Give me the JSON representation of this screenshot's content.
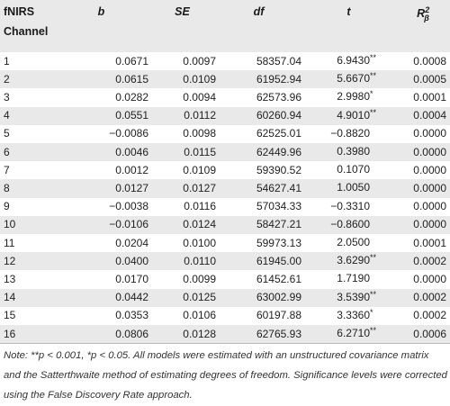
{
  "table": {
    "headers": {
      "channel_line1": "fNIRS",
      "channel_line2": "Channel",
      "b": "b",
      "se": "SE",
      "df": "df",
      "t": "t",
      "r2_base": "R",
      "r2_sub": "β",
      "r2_sup": "2"
    },
    "rows": [
      {
        "channel": "1",
        "b": "0.0671",
        "se": "0.0097",
        "df": "58357.04",
        "t": "6.9430",
        "sig": "**"
      },
      {
        "channel": "2",
        "b": "0.0615",
        "se": "0.0109",
        "df": "61952.94",
        "t": "5.6670",
        "sig": "**"
      },
      {
        "channel": "3",
        "b": "0.0282",
        "se": "0.0094",
        "df": "62573.96",
        "t": "2.9980",
        "sig": "*"
      },
      {
        "channel": "4",
        "b": "0.0551",
        "se": "0.0112",
        "df": "60260.94",
        "t": "4.9010",
        "sig": "**"
      },
      {
        "channel": "5",
        "b": "−0.0086",
        "se": "0.0098",
        "df": "62525.01",
        "t": "−0.8820",
        "sig": ""
      },
      {
        "channel": "6",
        "b": "0.0046",
        "se": "0.0115",
        "df": "62449.96",
        "t": "0.3980",
        "sig": ""
      },
      {
        "channel": "7",
        "b": "0.0012",
        "se": "0.0109",
        "df": "59390.52",
        "t": "0.1070",
        "sig": ""
      },
      {
        "channel": "8",
        "b": "0.0127",
        "se": "0.0127",
        "df": "54627.41",
        "t": "1.0050",
        "sig": ""
      },
      {
        "channel": "9",
        "b": "−0.0038",
        "se": "0.0116",
        "df": "57034.33",
        "t": "−0.3310",
        "sig": ""
      },
      {
        "channel": "10",
        "b": "−0.0106",
        "se": "0.0124",
        "df": "58427.21",
        "t": "−0.8600",
        "sig": ""
      },
      {
        "channel": "11",
        "b": "0.0204",
        "se": "0.0100",
        "df": "59973.13",
        "t": "2.0500",
        "sig": ""
      },
      {
        "channel": "12",
        "b": "0.0400",
        "se": "0.0110",
        "df": "61945.00",
        "t": "3.6290",
        "sig": "**"
      },
      {
        "channel": "13",
        "b": "0.0170",
        "se": "0.0099",
        "df": "61452.61",
        "t": "1.7190",
        "sig": ""
      },
      {
        "channel": "14",
        "b": "0.0442",
        "se": "0.0125",
        "df": "63002.99",
        "t": "3.5390",
        "sig": "**"
      },
      {
        "channel": "15",
        "b": "0.0353",
        "se": "0.0106",
        "df": "60197.88",
        "t": "3.3360",
        "sig": "*"
      },
      {
        "channel": "16",
        "b": "0.0806",
        "se": "0.0128",
        "df": "62765.93",
        "t": "6.2710",
        "sig": "**"
      }
    ],
    "r2": [
      "0.0008",
      "0.0005",
      "0.0001",
      "0.0004",
      "0.0000",
      "0.0000",
      "0.0000",
      "0.0000",
      "0.0000",
      "0.0000",
      "0.0001",
      "0.0002",
      "0.0000",
      "0.0002",
      "0.0002",
      "0.0006"
    ]
  },
  "note": "Note: **p < 0.001, *p < 0.05. All models were estimated with an unstructured covariance matrix and the Satterthwaite method of estimating degrees of freedom. Significance levels were corrected using the False Discovery Rate approach."
}
